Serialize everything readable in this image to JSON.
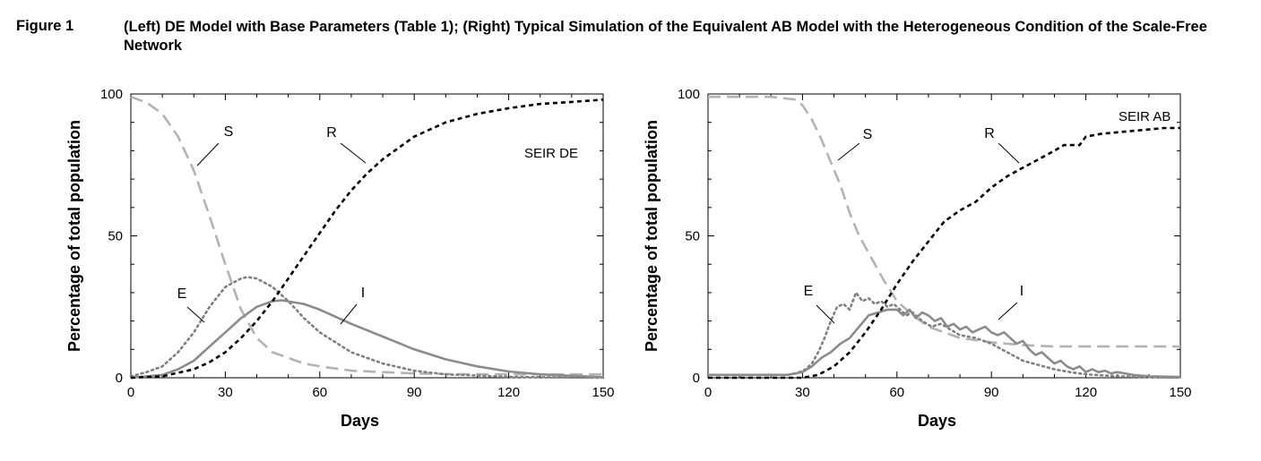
{
  "caption": {
    "label": "Figure 1",
    "text": "(Left) DE Model with Base Parameters (Table 1); (Right) Typical Simulation of the Equivalent AB Model with the Heterogeneous Condition of the Scale-Free Network"
  },
  "styles": {
    "S": {
      "color": "#b3b3b3",
      "dash": "long"
    },
    "E": {
      "color": "#808080",
      "dash": "dot"
    },
    "I": {
      "color": "#8c8c8c",
      "dash": "solid"
    },
    "R": {
      "color": "#000000",
      "dash": "short"
    }
  },
  "chart_data": [
    {
      "type": "line",
      "model_label": "SEIR DE",
      "xlabel": "Days",
      "ylabel": "Percentage of total population",
      "xlim": [
        0,
        150
      ],
      "ylim": [
        0,
        100
      ],
      "xticks": [
        0,
        30,
        60,
        90,
        120,
        150
      ],
      "yticks": [
        0,
        50,
        100
      ],
      "grid": false,
      "series": [
        {
          "name": "S",
          "x": [
            0,
            5,
            10,
            15,
            20,
            25,
            30,
            35,
            40,
            45,
            50,
            55,
            60,
            70,
            80,
            90,
            100,
            120,
            150
          ],
          "y": [
            99,
            97,
            93,
            85,
            73,
            57,
            40,
            24,
            14,
            9,
            7,
            5,
            4,
            2.5,
            2,
            1.5,
            1.3,
            1.2,
            1.2
          ]
        },
        {
          "name": "E",
          "x": [
            0,
            5,
            10,
            15,
            20,
            25,
            30,
            35,
            37,
            40,
            45,
            50,
            55,
            60,
            70,
            80,
            90,
            100,
            120,
            150
          ],
          "y": [
            0.5,
            2,
            4,
            9,
            16,
            25,
            32,
            35,
            35.5,
            35,
            32,
            27,
            21,
            16,
            9,
            5,
            2.5,
            1.2,
            0.3,
            0
          ]
        },
        {
          "name": "I",
          "x": [
            0,
            10,
            15,
            20,
            25,
            30,
            35,
            40,
            45,
            48,
            55,
            60,
            70,
            80,
            90,
            100,
            110,
            120,
            130,
            150
          ],
          "y": [
            0,
            1,
            3,
            6,
            11,
            16,
            21,
            25,
            27,
            27.3,
            26,
            24,
            19,
            14.5,
            10,
            6.5,
            4,
            2.2,
            1.2,
            0.2
          ]
        },
        {
          "name": "R",
          "x": [
            0,
            10,
            20,
            25,
            30,
            35,
            40,
            45,
            50,
            55,
            60,
            65,
            70,
            75,
            80,
            90,
            100,
            110,
            120,
            130,
            140,
            150
          ],
          "y": [
            0,
            0.5,
            3,
            5.5,
            9,
            14,
            20,
            27,
            35,
            43,
            51,
            59,
            66,
            72,
            77,
            85,
            90,
            93,
            95,
            96.5,
            97.2,
            98
          ]
        }
      ],
      "annotations": [
        {
          "text": "S",
          "target": "S"
        },
        {
          "text": "E",
          "target": "E"
        },
        {
          "text": "I",
          "target": "I"
        },
        {
          "text": "R",
          "target": "R"
        }
      ]
    },
    {
      "type": "line",
      "model_label": "SEIR AB",
      "xlabel": "Days",
      "ylabel": "Percentage of total population",
      "xlim": [
        0,
        150
      ],
      "ylim": [
        0,
        100
      ],
      "xticks": [
        0,
        30,
        60,
        90,
        120,
        150
      ],
      "yticks": [
        0,
        50,
        100
      ],
      "grid": false,
      "series": [
        {
          "name": "S",
          "x": [
            0,
            20,
            28,
            30,
            33,
            36,
            39,
            42,
            45,
            48,
            52,
            56,
            60,
            65,
            70,
            75,
            80,
            90,
            100,
            110,
            120,
            150
          ],
          "y": [
            99,
            99,
            98,
            96,
            91,
            84,
            76,
            68,
            58,
            50,
            42,
            34,
            27,
            22,
            18,
            16,
            14,
            12.5,
            11.5,
            11,
            11,
            11
          ]
        },
        {
          "name": "E",
          "x": [
            0,
            25,
            28,
            31,
            33,
            35,
            37,
            39,
            41,
            43,
            45,
            47,
            49,
            51,
            53,
            55,
            57,
            59,
            61,
            63,
            65,
            68,
            71,
            74,
            77,
            80,
            85,
            90,
            95,
            100,
            105,
            110,
            115,
            120,
            130,
            150
          ],
          "y": [
            1,
            1,
            1.5,
            3,
            5,
            9,
            14,
            20,
            25,
            26,
            24,
            30,
            27,
            28,
            26,
            27,
            25,
            26,
            24,
            22,
            23,
            20,
            18,
            19,
            17,
            15,
            14,
            12,
            9,
            6,
            4.5,
            3,
            2,
            1.2,
            0.5,
            0
          ]
        },
        {
          "name": "I",
          "x": [
            0,
            10,
            20,
            25,
            30,
            33,
            36,
            39,
            42,
            45,
            48,
            51,
            54,
            57,
            60,
            62,
            64,
            66,
            68,
            70,
            72,
            74,
            76,
            78,
            80,
            82,
            84,
            86,
            88,
            90,
            92,
            94,
            96,
            98,
            100,
            102,
            104,
            106,
            108,
            110,
            112,
            114,
            116,
            118,
            120,
            122,
            124,
            126,
            128,
            130,
            135,
            140,
            150
          ],
          "y": [
            1,
            1,
            1,
            1,
            2,
            4,
            7,
            9,
            12,
            14,
            18,
            22,
            23,
            24,
            24,
            22,
            24,
            21,
            23,
            22,
            20,
            21,
            18,
            19,
            17,
            18,
            16,
            17,
            18,
            16,
            15,
            16,
            14,
            12,
            13,
            10,
            8,
            9,
            7,
            5,
            6,
            4,
            3,
            4,
            2,
            3,
            2,
            2.5,
            1.5,
            2,
            1,
            0.5,
            0.3
          ]
        },
        {
          "name": "R",
          "x": [
            0,
            30,
            35,
            40,
            45,
            50,
            55,
            60,
            65,
            70,
            75,
            80,
            85,
            90,
            95,
            100,
            105,
            110,
            113,
            118,
            120,
            125,
            130,
            135,
            140,
            145,
            150
          ],
          "y": [
            0,
            0,
            1,
            4,
            9,
            16,
            24,
            33,
            41,
            48,
            55,
            59,
            62,
            67,
            71,
            74,
            77,
            80,
            82,
            82,
            85,
            86,
            86.5,
            87,
            87.5,
            88,
            88
          ]
        }
      ],
      "annotations": [
        {
          "text": "S",
          "target": "S"
        },
        {
          "text": "E",
          "target": "E"
        },
        {
          "text": "I",
          "target": "I"
        },
        {
          "text": "R",
          "target": "R"
        }
      ]
    }
  ]
}
